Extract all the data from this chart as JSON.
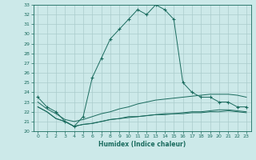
{
  "title": "",
  "xlabel": "Humidex (Indice chaleur)",
  "ylabel": "",
  "background_color": "#cce9e9",
  "grid_color": "#aacccc",
  "line_color": "#1a6b5e",
  "xlim": [
    -0.5,
    23.5
  ],
  "ylim": [
    20,
    33
  ],
  "xticks": [
    0,
    1,
    2,
    3,
    4,
    5,
    6,
    7,
    8,
    9,
    10,
    11,
    12,
    13,
    14,
    15,
    16,
    17,
    18,
    19,
    20,
    21,
    22,
    23
  ],
  "yticks": [
    20,
    21,
    22,
    23,
    24,
    25,
    26,
    27,
    28,
    29,
    30,
    31,
    32,
    33
  ],
  "series": [
    {
      "x": [
        0,
        1,
        2,
        3,
        4,
        5,
        6,
        7,
        8,
        9,
        10,
        11,
        12,
        13,
        14,
        15,
        16,
        17,
        18,
        19,
        20,
        21,
        22,
        23
      ],
      "y": [
        23.5,
        22.5,
        22.0,
        21.0,
        20.5,
        21.5,
        25.5,
        27.5,
        29.5,
        30.5,
        31.5,
        32.5,
        32.0,
        33.0,
        32.5,
        31.5,
        25.0,
        24.0,
        23.5,
        23.5,
        23.0,
        23.0,
        22.5,
        22.5
      ],
      "marker": "+"
    },
    {
      "x": [
        0,
        1,
        2,
        3,
        4,
        5,
        6,
        7,
        8,
        9,
        10,
        11,
        12,
        13,
        14,
        15,
        16,
        17,
        18,
        19,
        20,
        21,
        22,
        23
      ],
      "y": [
        23.0,
        22.3,
        21.8,
        21.2,
        21.0,
        21.2,
        21.5,
        21.8,
        22.0,
        22.3,
        22.5,
        22.8,
        23.0,
        23.2,
        23.3,
        23.4,
        23.5,
        23.6,
        23.7,
        23.8,
        23.8,
        23.8,
        23.7,
        23.5
      ],
      "marker": null
    },
    {
      "x": [
        0,
        1,
        2,
        3,
        4,
        5,
        6,
        7,
        8,
        9,
        10,
        11,
        12,
        13,
        14,
        15,
        16,
        17,
        18,
        19,
        20,
        21,
        22,
        23
      ],
      "y": [
        22.5,
        22.0,
        21.3,
        21.0,
        20.5,
        20.7,
        20.8,
        21.0,
        21.2,
        21.3,
        21.5,
        21.5,
        21.6,
        21.7,
        21.8,
        21.8,
        21.9,
        22.0,
        22.0,
        22.1,
        22.2,
        22.2,
        22.1,
        22.0
      ],
      "marker": null
    },
    {
      "x": [
        0,
        1,
        2,
        3,
        4,
        5,
        6,
        7,
        8,
        9,
        10,
        11,
        12,
        13,
        14,
        15,
        16,
        17,
        18,
        19,
        20,
        21,
        22,
        23
      ],
      "y": [
        22.5,
        22.0,
        21.3,
        21.0,
        20.5,
        20.7,
        20.8,
        21.0,
        21.2,
        21.3,
        21.4,
        21.5,
        21.6,
        21.7,
        21.7,
        21.8,
        21.8,
        21.9,
        21.9,
        22.0,
        22.0,
        22.1,
        22.0,
        21.9
      ],
      "marker": null
    }
  ]
}
